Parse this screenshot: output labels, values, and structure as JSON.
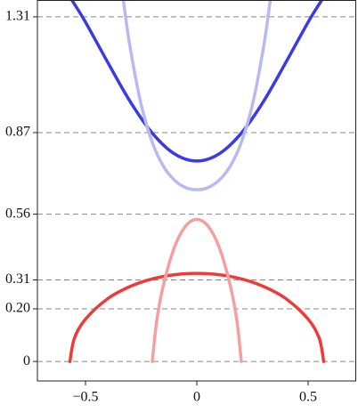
{
  "chart_data": {
    "type": "line",
    "xlim": [
      -0.716,
      0.716
    ],
    "ylim": [
      -0.074,
      1.374
    ],
    "xticks": [
      {
        "value": -0.5,
        "label": "−0.5"
      },
      0,
      0.5
    ],
    "yticks": [
      0,
      {
        "value": 0.2,
        "label": "0.20"
      },
      0.31,
      0.56,
      0.87,
      1.31
    ],
    "grid": true,
    "series": [
      {
        "color": "#3b3be6",
        "x": [
          -0.56,
          -0.5,
          -0.4,
          -0.3,
          -0.2,
          -0.1,
          0,
          0.1,
          0.2,
          0.3,
          0.4,
          0.5,
          0.56
        ],
        "values": [
          1.372,
          1.29,
          1.137,
          0.989,
          0.868,
          0.789,
          0.762,
          0.789,
          0.868,
          0.989,
          1.137,
          1.29,
          1.372
        ]
      },
      {
        "color": "#b9b9f2",
        "x": [
          -0.33,
          -0.3,
          -0.25,
          -0.2,
          -0.15,
          -0.1,
          -0.05,
          0,
          0.05,
          0.1,
          0.15,
          0.2,
          0.25,
          0.3,
          0.33
        ],
        "values": [
          1.374,
          1.196,
          0.977,
          0.833,
          0.742,
          0.689,
          0.661,
          0.653,
          0.661,
          0.689,
          0.742,
          0.833,
          0.977,
          1.196,
          1.374
        ]
      },
      {
        "color": "#f03a3a",
        "x": [
          -0.57,
          -0.55,
          -0.5,
          -0.4,
          -0.3,
          -0.2,
          -0.1,
          0,
          0.1,
          0.2,
          0.3,
          0.4,
          0.5,
          0.55,
          0.57
        ],
        "values": [
          0,
          0.088,
          0.161,
          0.239,
          0.285,
          0.314,
          0.33,
          0.335,
          0.33,
          0.314,
          0.285,
          0.239,
          0.161,
          0.088,
          0
        ]
      },
      {
        "color": "#f4a0a0",
        "x": [
          -0.2,
          -0.18,
          -0.15,
          -0.1,
          -0.05,
          0,
          0.05,
          0.1,
          0.15,
          0.18,
          0.2
        ],
        "values": [
          0,
          0.155,
          0.29,
          0.435,
          0.515,
          0.54,
          0.515,
          0.435,
          0.29,
          0.155,
          0
        ]
      }
    ]
  }
}
